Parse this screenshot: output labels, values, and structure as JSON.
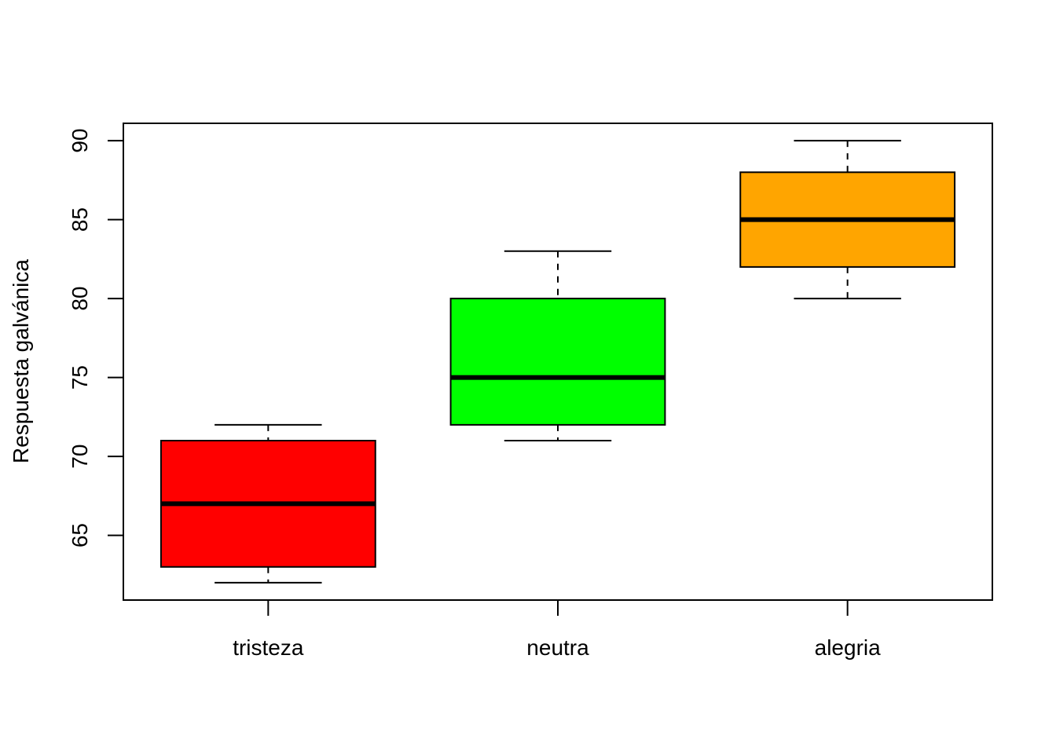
{
  "chart_data": {
    "type": "boxplot",
    "title": "",
    "xlabel": "",
    "ylabel": "Respuesta galvánica",
    "categories": [
      "tristeza",
      "neutra",
      "alegria"
    ],
    "boxes": [
      {
        "category": "tristeza",
        "min": 62,
        "q1": 63,
        "median": 67,
        "q3": 71,
        "max": 72,
        "color": "#FF0000"
      },
      {
        "category": "neutra",
        "min": 71,
        "q1": 72,
        "median": 75,
        "q3": 80,
        "max": 83,
        "color": "#00FF00"
      },
      {
        "category": "alegria",
        "min": 80,
        "q1": 82,
        "median": 85,
        "q3": 88,
        "max": 90,
        "color": "#FFA500"
      }
    ],
    "yticks": [
      65,
      70,
      75,
      80,
      85,
      90
    ],
    "ylim": [
      60.9,
      91.1
    ],
    "grid": false,
    "legend": "none"
  }
}
